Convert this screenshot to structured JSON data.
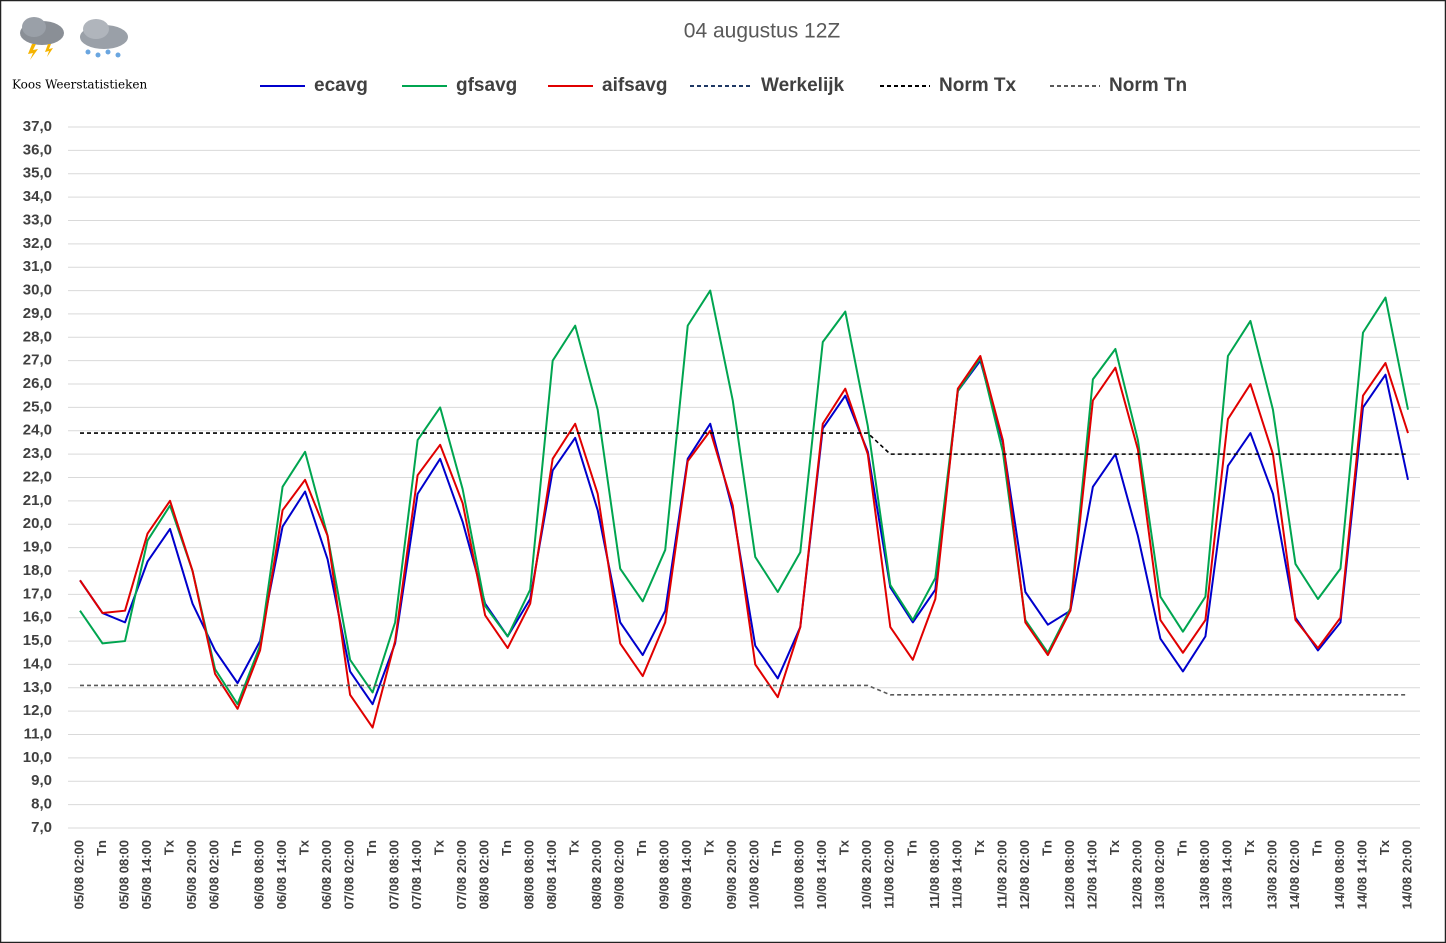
{
  "brand": "Koos Weerstatistieken",
  "chart_data": {
    "type": "line",
    "title": "04 augustus 12Z",
    "categories": [
      "05/08 02:00",
      "Tn",
      "05/08 08:00",
      "05/08 14:00",
      "Tx",
      "05/08 20:00",
      "06/08 02:00",
      "Tn",
      "06/08 08:00",
      "06/08 14:00",
      "Tx",
      "06/08 20:00",
      "07/08 02:00",
      "Tn",
      "07/08 08:00",
      "07/08 14:00",
      "Tx",
      "07/08 20:00",
      "08/08 02:00",
      "Tn",
      "08/08 08:00",
      "08/08 14:00",
      "Tx",
      "08/08 20:00",
      "09/08 02:00",
      "Tn",
      "09/08 08:00",
      "09/08 14:00",
      "Tx",
      "09/08 20:00",
      "10/08 02:00",
      "Tn",
      "10/08 08:00",
      "10/08 14:00",
      "Tx",
      "10/08 20:00",
      "11/08 02:00",
      "Tn",
      "11/08 08:00",
      "11/08 14:00",
      "Tx",
      "11/08 20:00",
      "12/08 02:00",
      "Tn",
      "12/08 08:00",
      "12/08 14:00",
      "Tx",
      "12/08 20:00",
      "13/08 02:00",
      "Tn",
      "13/08 08:00",
      "13/08 14:00",
      "Tx",
      "13/08 20:00",
      "14/08 02:00",
      "Tn",
      "14/08 08:00",
      "14/08 14:00",
      "Tx",
      "14/08 20:00"
    ],
    "series": [
      {
        "name": "ecavg",
        "color": "#0000cc",
        "dashed": false,
        "values": [
          17.6,
          16.2,
          15.8,
          18.4,
          19.8,
          16.6,
          14.6,
          13.2,
          15.0,
          19.9,
          21.4,
          18.5,
          13.7,
          12.3,
          14.9,
          21.3,
          22.8,
          20.1,
          16.6,
          15.2,
          16.8,
          22.3,
          23.7,
          20.6,
          15.8,
          14.4,
          16.3,
          22.8,
          24.3,
          20.6,
          14.8,
          13.4,
          15.6,
          24.1,
          25.5,
          23.1,
          17.3,
          15.8,
          17.2,
          25.7,
          27.0,
          23.5,
          17.1,
          15.7,
          16.3,
          21.6,
          23.0,
          19.5,
          15.1,
          13.7,
          15.2,
          22.5,
          23.9,
          21.3,
          16.0,
          14.6,
          15.8,
          25.0,
          26.4,
          21.9
        ]
      },
      {
        "name": "gfsavg",
        "color": "#00a550",
        "dashed": false,
        "values": [
          16.3,
          14.9,
          15.0,
          19.3,
          20.8,
          18.0,
          13.8,
          12.3,
          14.8,
          21.6,
          23.1,
          19.5,
          14.2,
          12.8,
          15.8,
          23.6,
          25.0,
          21.5,
          16.5,
          15.2,
          17.2,
          27.0,
          28.5,
          24.9,
          18.1,
          16.7,
          18.9,
          28.5,
          30.0,
          25.3,
          18.6,
          17.1,
          18.8,
          27.8,
          29.1,
          24.2,
          17.4,
          15.9,
          17.7,
          25.7,
          27.1,
          23.1,
          15.9,
          14.5,
          16.4,
          26.2,
          27.5,
          23.6,
          16.9,
          15.4,
          16.9,
          27.2,
          28.7,
          24.9,
          18.3,
          16.8,
          18.1,
          28.2,
          29.7,
          24.9
        ]
      },
      {
        "name": "aifsavg",
        "color": "#e00000",
        "dashed": false,
        "values": [
          17.6,
          16.2,
          16.3,
          19.6,
          21.0,
          18.0,
          13.6,
          12.1,
          14.6,
          20.6,
          21.9,
          19.5,
          12.7,
          11.3,
          15.0,
          22.1,
          23.4,
          20.9,
          16.1,
          14.7,
          16.6,
          22.8,
          24.3,
          21.3,
          14.9,
          13.5,
          15.8,
          22.7,
          24.0,
          20.8,
          14.0,
          12.6,
          15.6,
          24.3,
          25.8,
          23.0,
          15.6,
          14.2,
          16.8,
          25.8,
          27.2,
          23.6,
          15.8,
          14.4,
          16.3,
          25.3,
          26.7,
          23.2,
          15.9,
          14.5,
          15.9,
          24.5,
          26.0,
          23.0,
          15.9,
          14.7,
          16.0,
          25.5,
          26.9,
          23.9
        ]
      },
      {
        "name": "Werkelijk",
        "color": "#1f3864",
        "dashed": true,
        "values": [
          null,
          null,
          null,
          null,
          null,
          null,
          null,
          null,
          null,
          null,
          null,
          null,
          null,
          null,
          null,
          null,
          null,
          null,
          null,
          null,
          null,
          null,
          null,
          null,
          null,
          null,
          null,
          null,
          null,
          null,
          null,
          null,
          null,
          null,
          null,
          null,
          null,
          null,
          null,
          null,
          null,
          null,
          null,
          null,
          null,
          null,
          null,
          null,
          null,
          null,
          null,
          null,
          null,
          null,
          null,
          null,
          null,
          null,
          null,
          null
        ]
      },
      {
        "name": "Norm Tx",
        "color": "#000000",
        "dashed": true,
        "values": [
          23.9,
          23.9,
          23.9,
          23.9,
          23.9,
          23.9,
          23.9,
          23.9,
          23.9,
          23.9,
          23.9,
          23.9,
          23.9,
          23.9,
          23.9,
          23.9,
          23.9,
          23.9,
          23.9,
          23.9,
          23.9,
          23.9,
          23.9,
          23.9,
          23.9,
          23.9,
          23.9,
          23.9,
          23.9,
          23.9,
          23.9,
          23.9,
          23.9,
          23.9,
          23.9,
          23.9,
          23.0,
          23.0,
          23.0,
          23.0,
          23.0,
          23.0,
          23.0,
          23.0,
          23.0,
          23.0,
          23.0,
          23.0,
          23.0,
          23.0,
          23.0,
          23.0,
          23.0,
          23.0,
          23.0,
          23.0,
          23.0,
          23.0,
          23.0,
          23.0
        ]
      },
      {
        "name": "Norm Tn",
        "color": "#595959",
        "dashed": true,
        "values": [
          13.1,
          13.1,
          13.1,
          13.1,
          13.1,
          13.1,
          13.1,
          13.1,
          13.1,
          13.1,
          13.1,
          13.1,
          13.1,
          13.1,
          13.1,
          13.1,
          13.1,
          13.1,
          13.1,
          13.1,
          13.1,
          13.1,
          13.1,
          13.1,
          13.1,
          13.1,
          13.1,
          13.1,
          13.1,
          13.1,
          13.1,
          13.1,
          13.1,
          13.1,
          13.1,
          13.1,
          12.7,
          12.7,
          12.7,
          12.7,
          12.7,
          12.7,
          12.7,
          12.7,
          12.7,
          12.7,
          12.7,
          12.7,
          12.7,
          12.7,
          12.7,
          12.7,
          12.7,
          12.7,
          12.7,
          12.7,
          12.7,
          12.7,
          12.7,
          12.7
        ]
      }
    ],
    "ylim": [
      7,
      37
    ],
    "yticks": [
      {
        "value": 7,
        "label": "7,0"
      },
      {
        "value": 8,
        "label": "8,0"
      },
      {
        "value": 9,
        "label": "9,0"
      },
      {
        "value": 10,
        "label": "10,0"
      },
      {
        "value": 11,
        "label": "11,0"
      },
      {
        "value": 12,
        "label": "12,0"
      },
      {
        "value": 13,
        "label": "13,0"
      },
      {
        "value": 14,
        "label": "14,0"
      },
      {
        "value": 15,
        "label": "15,0"
      },
      {
        "value": 16,
        "label": "16,0"
      },
      {
        "value": 17,
        "label": "17,0"
      },
      {
        "value": 18,
        "label": "18,0"
      },
      {
        "value": 19,
        "label": "19,0"
      },
      {
        "value": 20,
        "label": "20,0"
      },
      {
        "value": 21,
        "label": "21,0"
      },
      {
        "value": 22,
        "label": "22,0"
      },
      {
        "value": 23,
        "label": "23,0"
      },
      {
        "value": 24,
        "label": "24,0"
      },
      {
        "value": 25,
        "label": "25,0"
      },
      {
        "value": 26,
        "label": "26,0"
      },
      {
        "value": 27,
        "label": "27,0"
      },
      {
        "value": 28,
        "label": "28,0"
      },
      {
        "value": 29,
        "label": "29,0"
      },
      {
        "value": 30,
        "label": "30,0"
      },
      {
        "value": 31,
        "label": "31,0"
      },
      {
        "value": 32,
        "label": "32,0"
      },
      {
        "value": 33,
        "label": "33,0"
      },
      {
        "value": 34,
        "label": "34,0"
      },
      {
        "value": 35,
        "label": "35,0"
      },
      {
        "value": 36,
        "label": "36,0"
      },
      {
        "value": 37,
        "label": "37,0"
      }
    ],
    "grid": true,
    "legend": "top"
  }
}
